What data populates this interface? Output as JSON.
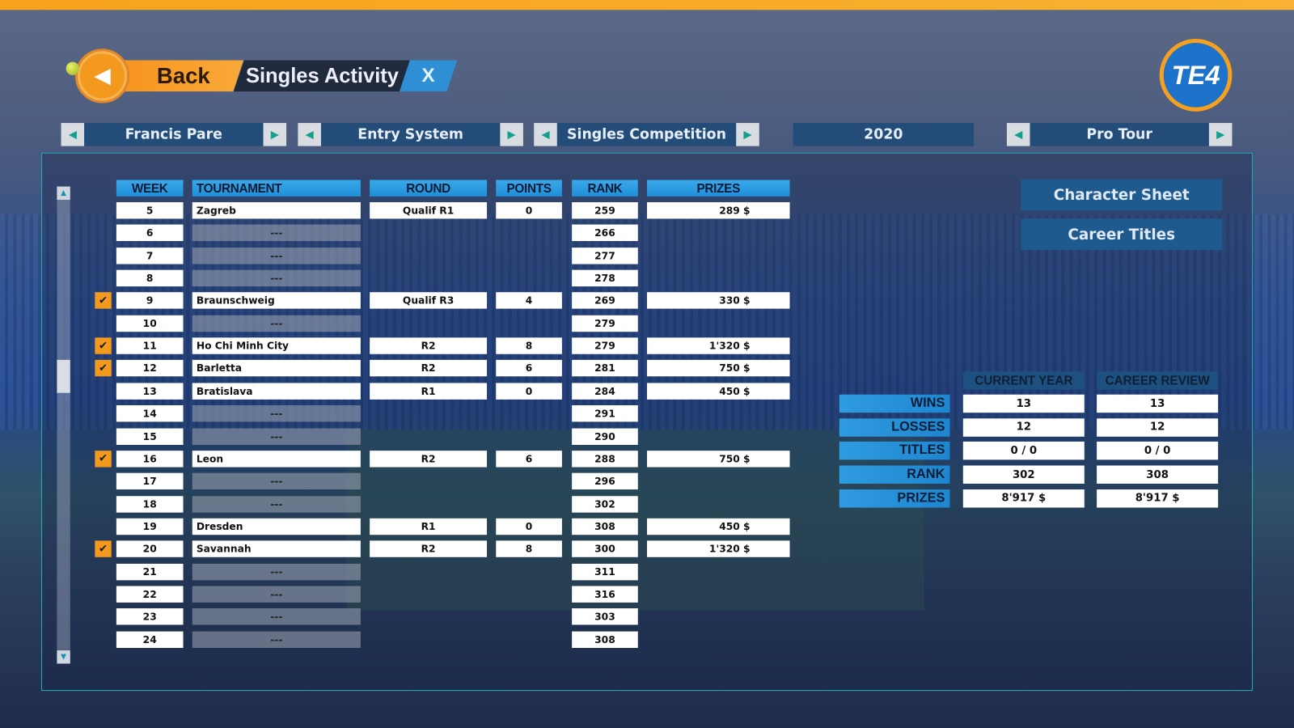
{
  "header": {
    "back_label": "Back",
    "title": "Singles Activity",
    "close_label": "X",
    "logo_text": "TE4",
    "back_icon": "triangle-left",
    "accent": "#f7941d"
  },
  "selectors": [
    {
      "label": "Francis Pare",
      "arrows": true
    },
    {
      "label": "Entry System",
      "arrows": true
    },
    {
      "label": "Singles Competition",
      "arrows": true
    },
    {
      "label": "2020",
      "arrows": false
    },
    {
      "label": "Pro Tour",
      "arrows": true
    }
  ],
  "table": {
    "columns": [
      "WEEK",
      "TOURNAMENT",
      "ROUND",
      "POINTS",
      "RANK",
      "PRIZES"
    ],
    "rows": [
      {
        "week": "5",
        "tournament": "Zagreb",
        "round": "Qualif R1",
        "points": "0",
        "rank": "259",
        "prizes": "289 $",
        "checked": false
      },
      {
        "week": "6",
        "tournament": "---",
        "rank": "266",
        "checked": false
      },
      {
        "week": "7",
        "tournament": "---",
        "rank": "277",
        "checked": false
      },
      {
        "week": "8",
        "tournament": "---",
        "rank": "278",
        "checked": false
      },
      {
        "week": "9",
        "tournament": "Braunschweig",
        "round": "Qualif R3",
        "points": "4",
        "rank": "269",
        "prizes": "330 $",
        "checked": true
      },
      {
        "week": "10",
        "tournament": "---",
        "rank": "279",
        "checked": false
      },
      {
        "week": "11",
        "tournament": "Ho Chi Minh City",
        "round": "R2",
        "points": "8",
        "rank": "279",
        "prizes": "1'320 $",
        "checked": true
      },
      {
        "week": "12",
        "tournament": "Barletta",
        "round": "R2",
        "points": "6",
        "rank": "281",
        "prizes": "750 $",
        "checked": true
      },
      {
        "week": "13",
        "tournament": "Bratislava",
        "round": "R1",
        "points": "0",
        "rank": "284",
        "prizes": "450 $",
        "checked": false
      },
      {
        "week": "14",
        "tournament": "---",
        "rank": "291",
        "checked": false
      },
      {
        "week": "15",
        "tournament": "---",
        "rank": "290",
        "checked": false
      },
      {
        "week": "16",
        "tournament": "Leon",
        "round": "R2",
        "points": "6",
        "rank": "288",
        "prizes": "750 $",
        "checked": true
      },
      {
        "week": "17",
        "tournament": "---",
        "rank": "296",
        "checked": false
      },
      {
        "week": "18",
        "tournament": "---",
        "rank": "302",
        "checked": false
      },
      {
        "week": "19",
        "tournament": "Dresden",
        "round": "R1",
        "points": "0",
        "rank": "308",
        "prizes": "450 $",
        "checked": false
      },
      {
        "week": "20",
        "tournament": "Savannah",
        "round": "R2",
        "points": "8",
        "rank": "300",
        "prizes": "1'320 $",
        "checked": true
      },
      {
        "week": "21",
        "tournament": "---",
        "rank": "311",
        "checked": false
      },
      {
        "week": "22",
        "tournament": "---",
        "rank": "316",
        "checked": false
      },
      {
        "week": "23",
        "tournament": "---",
        "rank": "303",
        "checked": false
      },
      {
        "week": "24",
        "tournament": "---",
        "rank": "308",
        "checked": false
      }
    ]
  },
  "side_buttons": [
    "Character Sheet",
    "Career Titles"
  ],
  "stats": {
    "columns": [
      "CURRENT YEAR",
      "CAREER REVIEW"
    ],
    "rows": [
      {
        "label": "WINS",
        "current": "13",
        "career": "13"
      },
      {
        "label": "LOSSES",
        "current": "12",
        "career": "12"
      },
      {
        "label": "TITLES",
        "current": "0 / 0",
        "career": "0 / 0"
      },
      {
        "label": "RANK",
        "current": "302",
        "career": "308"
      },
      {
        "label": "PRIZES",
        "current": "8'917 $",
        "career": "8'917 $"
      }
    ]
  }
}
